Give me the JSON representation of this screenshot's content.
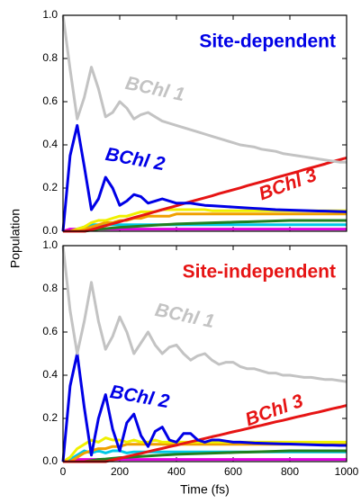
{
  "chart_data": [
    {
      "type": "line",
      "title": "Site-dependent",
      "title_color": "#0000e6",
      "ylabel": "Population",
      "x": [
        0,
        25,
        50,
        75,
        100,
        125,
        150,
        175,
        200,
        225,
        250,
        275,
        300,
        325,
        350,
        375,
        400,
        425,
        450,
        475,
        500,
        525,
        550,
        575,
        600,
        625,
        650,
        675,
        700,
        725,
        750,
        775,
        800,
        825,
        850,
        875,
        900,
        925,
        950,
        975,
        1000
      ],
      "xlim": [
        0,
        1000
      ],
      "xticks": [
        0,
        200,
        400,
        600,
        800,
        1000
      ],
      "xtick_labels": false,
      "ylim": [
        0,
        1
      ],
      "yticks": [
        {
          "value": 0,
          "label": "0.0"
        },
        0.2,
        0.4,
        0.6,
        0.8,
        {
          "value": 1,
          "label": "1.0"
        }
      ],
      "series": [
        {
          "color": "#e000e0",
          "values": [
            0,
            0.01,
            0.01,
            0.01,
            0.01,
            0.01,
            0.01,
            0.01,
            0.01,
            0.01,
            0.01,
            0.01,
            0.01,
            0.01,
            0.01,
            0.01,
            0.01,
            0.01,
            0.01,
            0.01,
            0.01,
            0.01,
            0.01,
            0.01,
            0.01,
            0.01,
            0.01,
            0.01,
            0.01,
            0.01,
            0.01,
            0.01,
            0.01,
            0.01,
            0.01,
            0.01,
            0.01,
            0.01,
            0.01,
            0.01,
            0.01
          ]
        },
        {
          "color": "#00c8e6",
          "values": [
            0,
            0,
            0.01,
            0.02,
            0.03,
            0.03,
            0.03,
            0.03,
            0.03,
            0.03,
            0.03,
            0.03,
            0.03,
            0.03,
            0.03,
            0.03,
            0.03,
            0.03,
            0.03,
            0.03,
            0.03,
            0.03,
            0.03,
            0.03,
            0.03,
            0.03,
            0.03,
            0.03,
            0.03,
            0.03,
            0.03,
            0.03,
            0.03,
            0.03,
            0.03,
            0.03,
            0.03,
            0.03,
            0.03,
            0.03,
            0.03
          ]
        },
        {
          "color": "#208020",
          "values": [
            0,
            0,
            0,
            0,
            0.005,
            0.01,
            0.012,
            0.015,
            0.018,
            0.02,
            0.022,
            0.024,
            0.026,
            0.028,
            0.03,
            0.032,
            0.034,
            0.035,
            0.036,
            0.037,
            0.038,
            0.039,
            0.04,
            0.041,
            0.042,
            0.043,
            0.044,
            0.045,
            0.046,
            0.047,
            0.048,
            0.049,
            0.05,
            0.05,
            0.05,
            0.05,
            0.05,
            0.05,
            0.05,
            0.05,
            0.05
          ]
        },
        {
          "color": "#f0a000",
          "values": [
            0,
            0,
            0,
            0.01,
            0.02,
            0.03,
            0.04,
            0.04,
            0.05,
            0.05,
            0.06,
            0.06,
            0.07,
            0.07,
            0.07,
            0.07,
            0.08,
            0.08,
            0.08,
            0.08,
            0.08,
            0.08,
            0.08,
            0.08,
            0.08,
            0.08,
            0.08,
            0.08,
            0.08,
            0.08,
            0.08,
            0.08,
            0.08,
            0.08,
            0.08,
            0.08,
            0.08,
            0.08,
            0.08,
            0.08,
            0.08
          ]
        },
        {
          "color": "#f0f000",
          "values": [
            0,
            0,
            0.01,
            0.02,
            0.04,
            0.05,
            0.05,
            0.06,
            0.07,
            0.07,
            0.08,
            0.09,
            0.09,
            0.09,
            0.1,
            0.1,
            0.1,
            0.1,
            0.1,
            0.1,
            0.1,
            0.095,
            0.095,
            0.095,
            0.095,
            0.095,
            0.095,
            0.095,
            0.095,
            0.095,
            0.095,
            0.095,
            0.095,
            0.095,
            0.095,
            0.095,
            0.095,
            0.095,
            0.095,
            0.095,
            0.095
          ]
        },
        {
          "name": "BChl 3",
          "color": "#e61414",
          "values": [
            0,
            0,
            0,
            0,
            0.007,
            0.017,
            0.026,
            0.035,
            0.044,
            0.054,
            0.063,
            0.072,
            0.081,
            0.091,
            0.1,
            0.109,
            0.118,
            0.128,
            0.137,
            0.146,
            0.155,
            0.164,
            0.174,
            0.183,
            0.192,
            0.201,
            0.211,
            0.22,
            0.229,
            0.238,
            0.248,
            0.257,
            0.266,
            0.275,
            0.285,
            0.294,
            0.303,
            0.312,
            0.322,
            0.331,
            0.34
          ]
        },
        {
          "name": "BChl 2",
          "color": "#0000e6",
          "values": [
            0,
            0.35,
            0.49,
            0.3,
            0.1,
            0.15,
            0.25,
            0.2,
            0.12,
            0.14,
            0.17,
            0.16,
            0.13,
            0.14,
            0.15,
            0.14,
            0.13,
            0.13,
            0.13,
            0.125,
            0.12,
            0.118,
            0.116,
            0.114,
            0.112,
            0.11,
            0.108,
            0.106,
            0.104,
            0.102,
            0.1,
            0.099,
            0.098,
            0.097,
            0.096,
            0.095,
            0.094,
            0.093,
            0.092,
            0.091,
            0.09
          ]
        },
        {
          "name": "BChl 1",
          "color": "#c3c3c3",
          "values": [
            1.0,
            0.75,
            0.52,
            0.62,
            0.76,
            0.66,
            0.53,
            0.55,
            0.6,
            0.57,
            0.52,
            0.54,
            0.55,
            0.53,
            0.51,
            0.5,
            0.49,
            0.48,
            0.47,
            0.46,
            0.45,
            0.44,
            0.43,
            0.42,
            0.41,
            0.4,
            0.395,
            0.39,
            0.38,
            0.375,
            0.37,
            0.36,
            0.355,
            0.35,
            0.345,
            0.34,
            0.335,
            0.33,
            0.325,
            0.32,
            0.32
          ]
        }
      ]
    },
    {
      "type": "line",
      "title": "Site-independent",
      "title_color": "#e61414",
      "xlabel": "Time (fs)",
      "x": [
        0,
        25,
        50,
        75,
        100,
        125,
        150,
        175,
        200,
        225,
        250,
        275,
        300,
        325,
        350,
        375,
        400,
        425,
        450,
        475,
        500,
        525,
        550,
        575,
        600,
        625,
        650,
        675,
        700,
        725,
        750,
        775,
        800,
        825,
        850,
        875,
        900,
        925,
        950,
        975,
        1000
      ],
      "xlim": [
        0,
        1000
      ],
      "xticks": [
        0,
        200,
        400,
        600,
        800,
        1000
      ],
      "xtick_labels": true,
      "ylim": [
        0,
        1
      ],
      "yticks": [
        {
          "value": 0,
          "label": "0.0"
        },
        0.2,
        0.4,
        0.6,
        0.8,
        {
          "value": 1,
          "label": "1.0"
        }
      ],
      "series": [
        {
          "color": "#e000e0",
          "values": [
            0,
            0.01,
            0.01,
            0.01,
            0.01,
            0.01,
            0.01,
            0.01,
            0.01,
            0.01,
            0.01,
            0.01,
            0.01,
            0.01,
            0.01,
            0.01,
            0.01,
            0.01,
            0.01,
            0.01,
            0.01,
            0.01,
            0.01,
            0.01,
            0.01,
            0.01,
            0.01,
            0.01,
            0.01,
            0.01,
            0.01,
            0.01,
            0.01,
            0.01,
            0.01,
            0.01,
            0.01,
            0.01,
            0.01,
            0.01,
            0.01
          ]
        },
        {
          "color": "#00c8e6",
          "values": [
            0,
            0.01,
            0.03,
            0.05,
            0.04,
            0.05,
            0.04,
            0.05,
            0.05,
            0.04,
            0.045,
            0.045,
            0.045,
            0.045,
            0.045,
            0.045,
            0.045,
            0.045,
            0.045,
            0.045,
            0.045,
            0.045,
            0.045,
            0.045,
            0.045,
            0.045,
            0.045,
            0.045,
            0.045,
            0.045,
            0.045,
            0.045,
            0.045,
            0.045,
            0.045,
            0.045,
            0.045,
            0.045,
            0.045,
            0.045,
            0.045
          ]
        },
        {
          "color": "#208020",
          "values": [
            0,
            0,
            0,
            0,
            0.005,
            0.01,
            0.012,
            0.015,
            0.018,
            0.02,
            0.022,
            0.024,
            0.026,
            0.028,
            0.03,
            0.032,
            0.034,
            0.035,
            0.036,
            0.037,
            0.038,
            0.039,
            0.04,
            0.041,
            0.042,
            0.043,
            0.044,
            0.045,
            0.046,
            0.047,
            0.048,
            0.049,
            0.05,
            0.05,
            0.05,
            0.05,
            0.05,
            0.05,
            0.05,
            0.05,
            0.05
          ]
        },
        {
          "color": "#f0a000",
          "values": [
            0,
            0,
            0.02,
            0.04,
            0.05,
            0.06,
            0.06,
            0.07,
            0.07,
            0.08,
            0.08,
            0.08,
            0.08,
            0.08,
            0.08,
            0.08,
            0.08,
            0.08,
            0.08,
            0.08,
            0.08,
            0.08,
            0.08,
            0.08,
            0.08,
            0.08,
            0.08,
            0.08,
            0.08,
            0.08,
            0.08,
            0.08,
            0.08,
            0.08,
            0.08,
            0.08,
            0.08,
            0.08,
            0.08,
            0.08,
            0.08
          ]
        },
        {
          "color": "#f0f000",
          "values": [
            0,
            0.02,
            0.06,
            0.08,
            0.1,
            0.09,
            0.11,
            0.1,
            0.1,
            0.09,
            0.1,
            0.09,
            0.09,
            0.1,
            0.09,
            0.09,
            0.09,
            0.09,
            0.09,
            0.09,
            0.09,
            0.09,
            0.09,
            0.09,
            0.09,
            0.09,
            0.09,
            0.09,
            0.09,
            0.09,
            0.09,
            0.09,
            0.09,
            0.09,
            0.09,
            0.09,
            0.09,
            0.09,
            0.09,
            0.09,
            0.09
          ]
        },
        {
          "name": "BChl 3",
          "color": "#e61414",
          "values": [
            0,
            0,
            0,
            0,
            0,
            0,
            0,
            0.008,
            0.015,
            0.023,
            0.031,
            0.038,
            0.046,
            0.054,
            0.061,
            0.069,
            0.076,
            0.084,
            0.092,
            0.099,
            0.107,
            0.115,
            0.122,
            0.13,
            0.138,
            0.145,
            0.153,
            0.161,
            0.168,
            0.176,
            0.184,
            0.191,
            0.199,
            0.207,
            0.214,
            0.222,
            0.229,
            0.237,
            0.245,
            0.252,
            0.26
          ]
        },
        {
          "name": "BChl 2",
          "color": "#0000e6",
          "values": [
            0,
            0.35,
            0.5,
            0.25,
            0.03,
            0.2,
            0.31,
            0.15,
            0.05,
            0.18,
            0.22,
            0.12,
            0.07,
            0.14,
            0.16,
            0.1,
            0.09,
            0.13,
            0.13,
            0.1,
            0.09,
            0.1,
            0.1,
            0.095,
            0.09,
            0.09,
            0.088,
            0.086,
            0.085,
            0.084,
            0.083,
            0.082,
            0.081,
            0.08,
            0.079,
            0.078,
            0.077,
            0.076,
            0.076,
            0.075,
            0.075
          ]
        },
        {
          "name": "BChl 1",
          "color": "#c3c3c3",
          "values": [
            1.0,
            0.7,
            0.5,
            0.65,
            0.83,
            0.65,
            0.52,
            0.58,
            0.67,
            0.6,
            0.5,
            0.55,
            0.6,
            0.54,
            0.5,
            0.53,
            0.54,
            0.5,
            0.47,
            0.49,
            0.5,
            0.47,
            0.45,
            0.46,
            0.46,
            0.44,
            0.43,
            0.43,
            0.42,
            0.41,
            0.41,
            0.4,
            0.4,
            0.395,
            0.39,
            0.39,
            0.385,
            0.38,
            0.38,
            0.375,
            0.37
          ]
        }
      ]
    }
  ]
}
